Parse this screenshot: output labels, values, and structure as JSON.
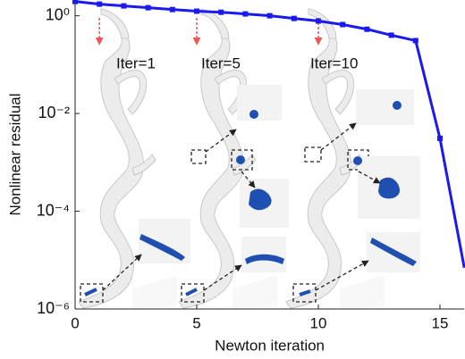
{
  "chart_data": {
    "type": "line",
    "x": [
      0,
      1,
      2,
      3,
      4,
      5,
      6,
      7,
      8,
      9,
      10,
      11,
      12,
      13,
      14,
      15,
      16
    ],
    "values": [
      1.96,
      1.73,
      1.59,
      1.46,
      1.34,
      1.24,
      1.18,
      1.09,
      1.0,
      0.88,
      0.78,
      0.66,
      0.53,
      0.4,
      0.31,
      0.0031,
      7e-06
    ],
    "color": "#1a1aee",
    "xlabel": "Newton iteration",
    "ylabel": "Nonlinear residual",
    "xlim": [
      0,
      16
    ],
    "xticks": [
      0,
      5,
      10,
      15
    ],
    "ylim": [
      1e-06,
      2.1
    ],
    "ylog": true,
    "yticks": [
      {
        "value": 1,
        "label": "10⁰"
      },
      {
        "value": 0.01,
        "label": "10⁻²"
      },
      {
        "value": 0.0001,
        "label": "10⁻⁴"
      },
      {
        "value": 1e-06,
        "label": "10⁻⁶"
      }
    ],
    "annotations": [
      "Iter=1",
      "Iter=5",
      "Iter=10"
    ]
  }
}
